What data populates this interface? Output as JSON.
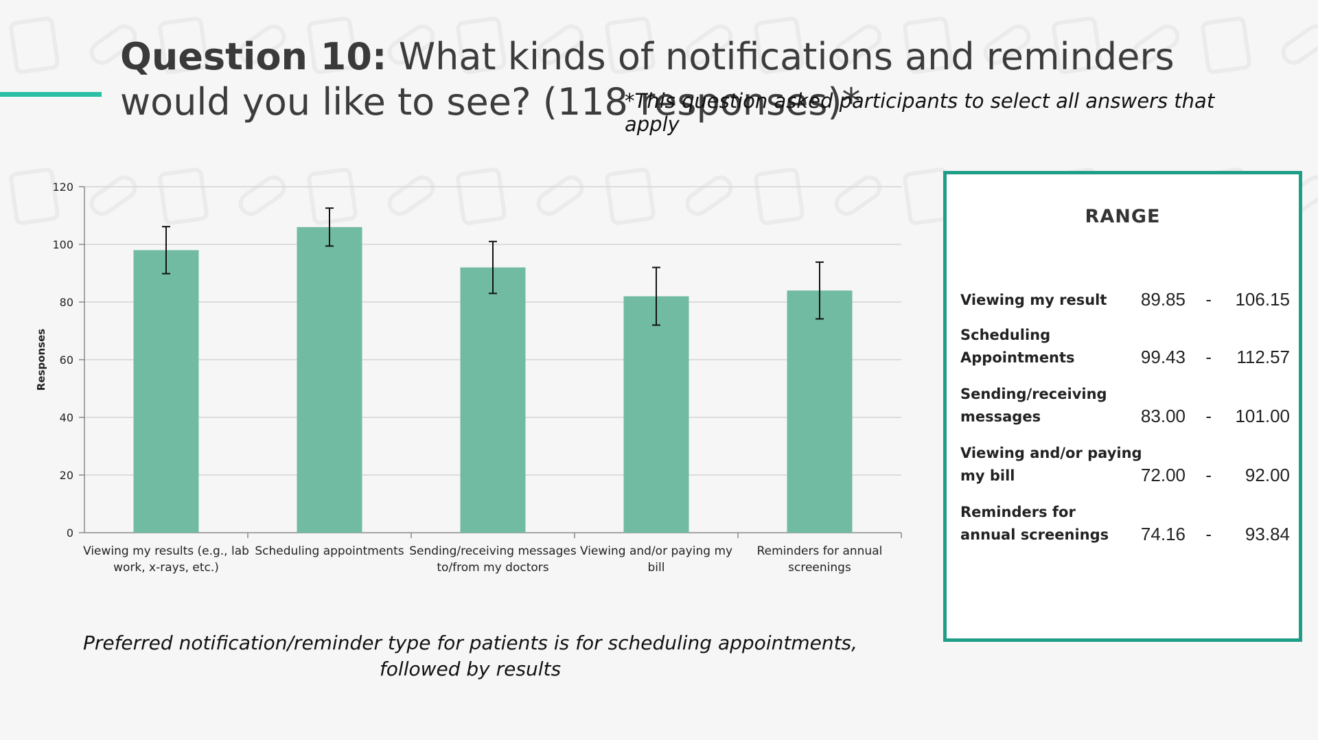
{
  "header": {
    "title_strong": "Question 10:",
    "title_rest": "What kinds of notifications and reminders would you like to see? (118 responses)*",
    "footnote": "*This question asked participants to select all answers that apply"
  },
  "colors": {
    "accent": "#2bbfa4",
    "bar": "#71bba3",
    "panel_border": "#1e9e87"
  },
  "chart_data": {
    "type": "bar",
    "categories": [
      [
        "Viewing my results (e.g., lab",
        "work, x-rays, etc.)"
      ],
      [
        "Scheduling appointments"
      ],
      [
        "Sending/receiving messages",
        "to/from my doctors"
      ],
      [
        "Viewing and/or paying my",
        "bill"
      ],
      [
        "Reminders for annual",
        "screenings"
      ]
    ],
    "values": [
      98,
      106,
      92,
      82,
      84
    ],
    "error_bars": [
      [
        89.85,
        106.15
      ],
      [
        99.43,
        112.57
      ],
      [
        83.0,
        101.0
      ],
      [
        72.0,
        92.0
      ],
      [
        74.16,
        93.84
      ]
    ],
    "ylabel": "Responses",
    "ylim": [
      0,
      120
    ],
    "yticks": [
      0,
      20,
      40,
      60,
      80,
      100,
      120
    ],
    "grid": true,
    "legend": "none"
  },
  "caption": "Preferred notification/reminder type for patients is for scheduling appointments, followed by results",
  "range_panel": {
    "title": "RANGE",
    "rows": [
      {
        "label": "Viewing my result",
        "low": "89.85",
        "dash": "-",
        "high": "106.15"
      },
      {
        "label": "Scheduling Appointments",
        "low": "99.43",
        "dash": "-",
        "high": "112.57"
      },
      {
        "label": "Sending/receiving messages",
        "low": "83.00",
        "dash": "-",
        "high": "101.00"
      },
      {
        "label": "Viewing and/or paying my bill",
        "low": "72.00",
        "dash": "-",
        "high": "92.00"
      },
      {
        "label": "Reminders for annual screenings",
        "low": "74.16",
        "dash": "-",
        "high": "93.84"
      }
    ]
  }
}
